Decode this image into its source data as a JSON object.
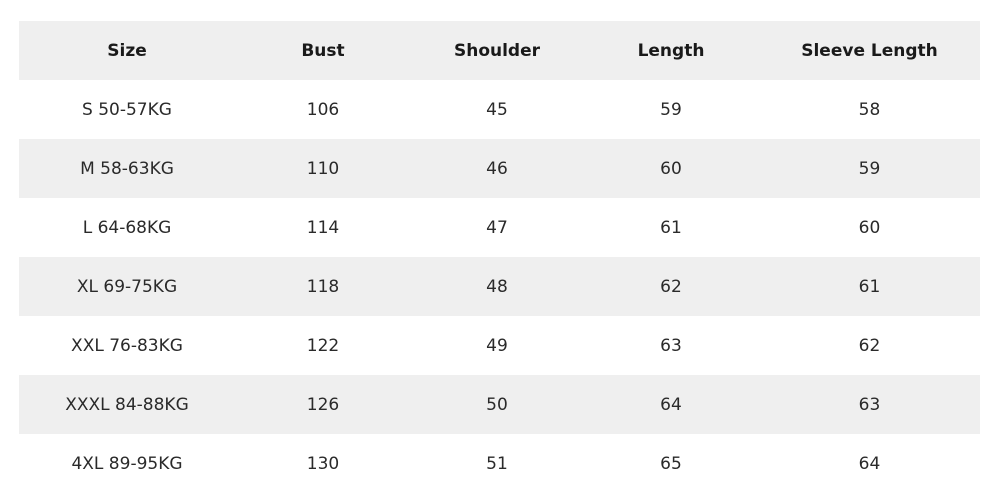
{
  "headers": [
    "Size",
    "Bust",
    "Shoulder",
    "Length",
    "Sleeve Length"
  ],
  "rows": [
    [
      "S 50-57KG",
      "106",
      "45",
      "59",
      "58"
    ],
    [
      "M 58-63KG",
      "110",
      "46",
      "60",
      "59"
    ],
    [
      "L 64-68KG",
      "114",
      "47",
      "61",
      "60"
    ],
    [
      "XL 69-75KG",
      "118",
      "48",
      "62",
      "61"
    ],
    [
      "XXL 76-83KG",
      "122",
      "49",
      "63",
      "62"
    ],
    [
      "XXXL 84-88KG",
      "126",
      "50",
      "64",
      "63"
    ],
    [
      "4XL 89-95KG",
      "130",
      "51",
      "65",
      "64"
    ]
  ],
  "colors": {
    "stripe": "#efefef",
    "background": "#ffffff"
  }
}
